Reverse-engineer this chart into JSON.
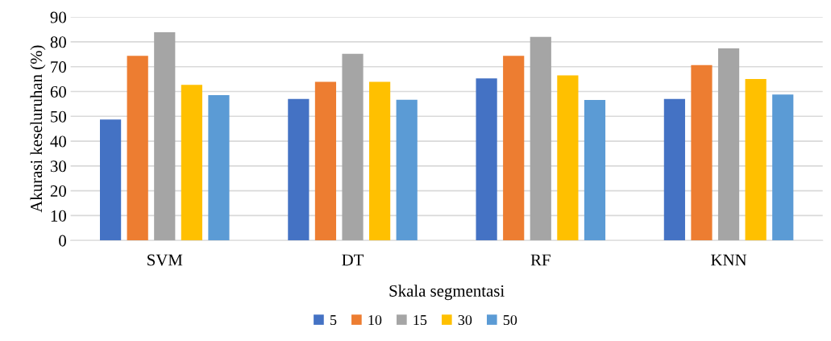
{
  "chart_data": {
    "type": "bar",
    "xlabel": "Skala segmentasi",
    "ylabel": "Akurasi keseluruhan (%)",
    "categories": [
      "SVM",
      "DT",
      "RF",
      "KNN"
    ],
    "series": [
      {
        "name": "5",
        "color": "#4472c4",
        "values": [
          48.7,
          57.0,
          65.3,
          57.0
        ]
      },
      {
        "name": "10",
        "color": "#ed7d31",
        "values": [
          74.4,
          63.9,
          74.4,
          70.6
        ]
      },
      {
        "name": "15",
        "color": "#a5a5a5",
        "values": [
          83.9,
          75.2,
          82.0,
          77.4
        ]
      },
      {
        "name": "30",
        "color": "#ffc000",
        "values": [
          62.7,
          63.9,
          66.5,
          65.0
        ]
      },
      {
        "name": "50",
        "color": "#5b9bd5",
        "values": [
          58.5,
          56.7,
          56.6,
          58.8
        ]
      }
    ],
    "ylim": [
      0,
      90
    ],
    "yticks": [
      0,
      10,
      20,
      30,
      40,
      50,
      60,
      70,
      80,
      90
    ],
    "grid": "y",
    "legend": "bottom"
  }
}
